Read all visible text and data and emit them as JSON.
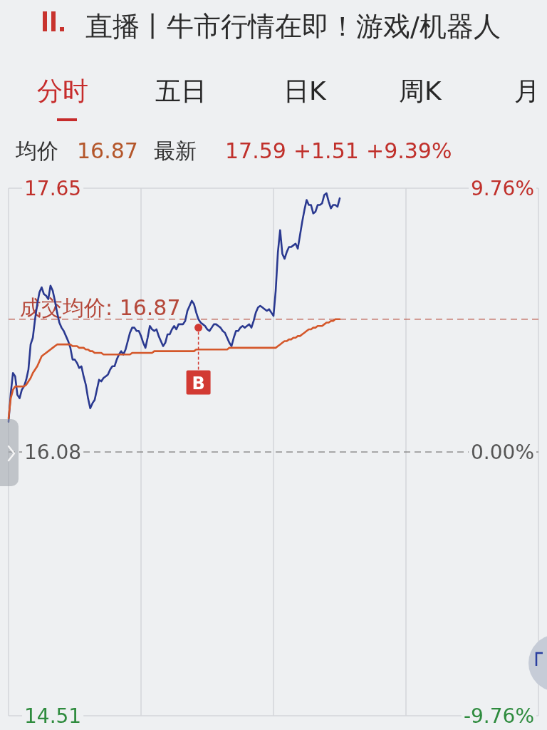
{
  "chart_data": {
    "type": "line",
    "annotations": [
      "直播丨牛市行情在即！游戏/机器人",
      "分时",
      "五日",
      "日K",
      "周K",
      "月",
      "均价",
      "16.87",
      "最新",
      "17.59",
      "+1.51",
      "+9.39%"
    ],
    "categories": [
      null,
      null,
      null,
      null,
      null,
      null,
      null,
      null,
      null,
      null,
      null,
      null,
      null,
      null,
      null,
      null,
      null,
      null,
      null,
      null,
      null,
      null,
      null,
      null,
      null,
      null,
      null,
      null,
      null,
      null,
      null,
      null,
      null,
      null,
      null,
      null,
      null,
      null,
      null,
      null,
      null,
      null,
      null,
      null,
      null,
      null,
      null,
      null,
      null,
      null,
      null,
      null,
      null,
      null,
      null,
      null,
      null,
      null,
      null,
      null,
      null,
      null,
      null,
      null,
      null,
      null,
      null,
      null,
      null,
      null,
      null,
      null,
      null,
      null,
      null,
      null,
      null,
      null,
      null,
      null,
      null,
      null,
      null,
      null,
      null,
      null,
      null,
      null,
      null,
      null,
      null,
      null,
      null,
      null,
      null,
      null,
      null,
      null,
      null,
      null,
      null,
      null,
      null,
      null,
      null,
      null,
      null,
      null,
      null,
      null,
      null,
      null,
      null,
      null,
      null,
      null,
      null,
      null,
      null,
      null,
      null,
      null,
      null,
      null,
      null,
      null,
      null,
      null,
      null,
      null,
      null,
      null,
      null,
      null,
      null,
      null,
      null,
      null,
      null,
      null,
      null,
      null,
      null,
      null,
      null,
      null,
      null,
      null,
      null,
      null,
      null,
      null,
      null,
      null,
      null,
      null,
      null,
      null,
      null,
      null,
      null,
      null,
      null,
      null,
      null,
      null,
      null,
      null,
      null,
      null,
      null,
      null,
      null,
      null,
      null,
      null,
      null,
      null,
      null,
      null,
      null,
      null,
      null,
      null,
      null,
      null,
      null,
      null,
      null,
      null,
      null,
      null,
      null,
      null,
      null,
      null,
      null,
      null,
      null,
      null,
      null,
      null,
      null,
      null,
      null,
      null,
      null,
      null,
      null,
      null,
      null,
      null,
      null,
      null,
      null,
      null,
      null,
      null,
      null,
      null,
      null,
      null,
      null,
      null,
      null,
      null,
      null,
      null,
      null,
      null,
      null,
      null,
      null,
      null,
      null,
      null,
      null,
      null,
      null,
      null,
      null
    ],
    "series": [
      {
        "color": "#2a3990",
        "values": [
          16.26,
          16.43,
          16.55,
          16.53,
          16.42,
          16.4,
          16.45,
          16.47,
          16.51,
          16.57,
          16.72,
          16.76,
          16.87,
          16.96,
          17.03,
          17.06,
          17.02,
          17.01,
          16.99,
          17.07,
          17.04,
          16.98,
          16.91,
          16.85,
          16.82,
          16.8,
          16.77,
          16.74,
          16.7,
          16.63,
          16.63,
          16.61,
          16.58,
          16.59,
          16.53,
          16.48,
          16.4,
          16.34,
          16.37,
          16.39,
          16.45,
          16.51,
          16.5,
          16.52,
          16.53,
          16.54,
          16.57,
          16.59,
          16.59,
          16.63,
          16.66,
          16.68,
          16.66,
          16.69,
          16.74,
          16.79,
          16.82,
          16.82,
          16.8,
          16.8,
          16.77,
          16.73,
          16.7,
          16.76,
          16.83,
          16.81,
          16.8,
          16.81,
          16.77,
          16.74,
          16.71,
          16.73,
          16.78,
          16.78,
          16.81,
          16.83,
          16.81,
          16.84,
          16.84,
          16.84,
          16.86,
          16.92,
          16.95,
          16.98,
          16.96,
          16.91,
          16.87,
          16.85,
          16.84,
          16.83,
          16.81,
          16.8,
          16.82,
          16.84,
          16.84,
          16.83,
          16.82,
          16.8,
          16.79,
          16.76,
          16.73,
          16.71,
          16.76,
          16.8,
          16.8,
          16.82,
          16.83,
          16.82,
          16.83,
          16.84,
          16.82,
          16.86,
          16.91,
          16.94,
          16.95,
          16.94,
          16.93,
          16.92,
          16.93,
          16.91,
          16.89,
          17.04,
          17.27,
          17.4,
          17.26,
          17.23,
          17.27,
          17.3,
          17.3,
          17.31,
          17.32,
          17.29,
          17.37,
          17.45,
          17.52,
          17.58,
          17.55,
          17.55,
          17.5,
          17.51,
          17.55,
          17.55,
          17.56,
          17.61,
          17.62,
          17.57,
          17.53,
          17.55,
          17.55,
          17.54,
          17.59,
          null,
          null,
          null,
          null,
          null,
          null,
          null,
          null,
          null,
          null,
          null,
          null,
          null,
          null,
          null,
          null,
          null,
          null,
          null,
          null,
          null,
          null,
          null,
          null,
          null,
          null,
          null,
          null,
          null,
          null,
          null,
          null,
          null,
          null,
          null,
          null,
          null,
          null,
          null,
          null,
          null,
          null,
          null,
          null,
          null,
          null,
          null,
          null,
          null,
          null,
          null,
          null,
          null,
          null,
          null,
          null,
          null,
          null,
          null,
          null,
          null,
          null,
          null,
          null,
          null,
          null,
          null,
          null,
          null,
          null,
          null,
          null,
          null,
          null,
          null,
          null,
          null,
          null,
          null,
          null,
          null,
          null,
          null,
          null,
          null,
          null,
          null,
          null,
          null,
          null
        ]
      },
      {
        "color": "#d4572a",
        "values": [
          16.28,
          16.4,
          16.45,
          16.47,
          16.47,
          16.47,
          16.47,
          16.47,
          16.48,
          16.5,
          16.52,
          16.55,
          16.57,
          16.59,
          16.62,
          16.65,
          16.66,
          16.67,
          16.68,
          16.69,
          16.7,
          16.71,
          16.72,
          16.72,
          16.72,
          16.72,
          16.72,
          16.72,
          16.72,
          16.71,
          16.71,
          16.71,
          16.7,
          16.7,
          16.7,
          16.69,
          16.69,
          16.68,
          16.68,
          16.67,
          16.67,
          16.67,
          16.67,
          16.66,
          16.66,
          16.66,
          16.66,
          16.66,
          16.66,
          16.66,
          16.66,
          16.66,
          16.66,
          16.66,
          16.66,
          16.66,
          16.67,
          16.67,
          16.67,
          16.67,
          16.67,
          16.67,
          16.67,
          16.67,
          16.67,
          16.67,
          16.68,
          16.68,
          16.68,
          16.68,
          16.68,
          16.68,
          16.68,
          16.68,
          16.68,
          16.68,
          16.68,
          16.68,
          16.68,
          16.68,
          16.68,
          16.68,
          16.68,
          16.68,
          16.68,
          16.69,
          16.69,
          16.69,
          16.69,
          16.69,
          16.69,
          16.69,
          16.69,
          16.69,
          16.69,
          16.69,
          16.69,
          16.69,
          16.69,
          16.69,
          16.7,
          16.7,
          16.7,
          16.7,
          16.7,
          16.7,
          16.7,
          16.7,
          16.7,
          16.7,
          16.7,
          16.7,
          16.7,
          16.7,
          16.7,
          16.7,
          16.7,
          16.7,
          16.7,
          16.7,
          16.7,
          16.7,
          16.71,
          16.72,
          16.73,
          16.74,
          16.74,
          16.75,
          16.75,
          16.76,
          16.76,
          16.77,
          16.77,
          16.78,
          16.79,
          16.8,
          16.81,
          16.81,
          16.82,
          16.82,
          16.83,
          16.83,
          16.83,
          16.84,
          16.85,
          16.85,
          16.86,
          16.86,
          16.87,
          16.87,
          16.87,
          null,
          null,
          null,
          null,
          null,
          null,
          null,
          null,
          null,
          null,
          null,
          null,
          null,
          null,
          null,
          null,
          null,
          null,
          null,
          null,
          null,
          null,
          null,
          null,
          null,
          null,
          null,
          null,
          null,
          null,
          null,
          null,
          null,
          null,
          null,
          null,
          null,
          null,
          null,
          null,
          null,
          null,
          null,
          null,
          null,
          null,
          null,
          null,
          null,
          null,
          null,
          null,
          null,
          null,
          null,
          null,
          null,
          null,
          null,
          null,
          null,
          null,
          null,
          null,
          null,
          null,
          null,
          null,
          null,
          null,
          null,
          null,
          null,
          null,
          null,
          null,
          null,
          null,
          null,
          null,
          null,
          null,
          null,
          null,
          null,
          null,
          null,
          null,
          null,
          null
        ]
      },
      {
        "type": "scatter",
        "name": "B",
        "color": "#d23a33",
        "values": [
          null,
          null,
          null,
          null,
          null,
          null,
          null,
          null,
          null,
          null,
          null,
          null,
          null,
          null,
          null,
          null,
          null,
          null,
          null,
          null,
          null,
          null,
          null,
          null,
          null,
          null,
          null,
          null,
          null,
          null,
          null,
          null,
          null,
          null,
          null,
          null,
          null,
          null,
          null,
          null,
          null,
          null,
          null,
          null,
          null,
          null,
          null,
          null,
          null,
          null,
          null,
          null,
          null,
          null,
          null,
          null,
          null,
          null,
          null,
          null,
          null,
          null,
          null,
          null,
          null,
          null,
          null,
          null,
          null,
          null,
          null,
          null,
          null,
          null,
          null,
          null,
          null,
          null,
          null,
          null,
          null,
          null,
          null,
          null,
          null,
          null,
          16.82,
          null,
          null,
          null,
          null,
          null,
          null,
          null,
          null,
          null,
          null,
          null,
          null,
          null,
          null,
          null,
          null,
          null,
          null,
          null,
          null,
          null,
          null,
          null,
          null,
          null,
          null,
          null,
          null,
          null,
          null,
          null,
          null,
          null,
          null,
          null,
          null,
          null,
          null,
          null,
          null,
          null,
          null,
          null,
          null,
          null,
          null,
          null,
          null,
          null,
          null,
          null,
          null,
          null,
          null,
          null,
          null,
          null,
          null,
          null,
          null,
          null,
          null,
          null,
          null,
          null,
          null,
          null,
          null,
          null,
          null,
          null,
          null,
          null,
          null,
          null,
          null,
          null,
          null,
          null,
          null,
          null,
          null,
          null,
          null,
          null,
          null,
          null,
          null,
          null,
          null,
          null,
          null,
          null,
          null,
          null,
          null,
          null,
          null,
          null,
          null,
          null,
          null,
          null,
          null,
          null,
          null,
          null,
          null,
          null,
          null,
          null,
          null,
          null,
          null,
          null,
          null,
          null,
          null,
          null,
          null,
          null,
          null,
          null,
          null,
          null,
          null,
          null,
          null,
          null,
          null,
          null,
          null,
          null,
          null,
          null,
          null,
          null,
          null,
          null,
          null,
          null,
          null,
          null,
          null,
          null,
          null,
          null,
          null,
          null,
          null,
          null,
          null,
          null,
          null
        ]
      }
    ],
    "ylim": [
      14.51,
      17.65
    ],
    "yticks": [
      17.65,
      16.08,
      14.51
    ],
    "y2lim": [
      -9.76,
      9.76
    ],
    "y2ticks": [
      {
        "value": 9.76,
        "label": "9.76%"
      },
      {
        "value": 0,
        "label": "0.00%"
      },
      {
        "value": -9.76,
        "label": "-9.76%"
      }
    ],
    "ref_lines": [
      {
        "axis": "y",
        "value": 16.87,
        "label": "成交均价: 16.87",
        "color": "#b5483a",
        "line_style": "dashed"
      },
      {
        "axis": "y",
        "value": 16.08,
        "color": "#707070",
        "line_style": "dashed"
      }
    ],
    "grid": "x"
  }
}
